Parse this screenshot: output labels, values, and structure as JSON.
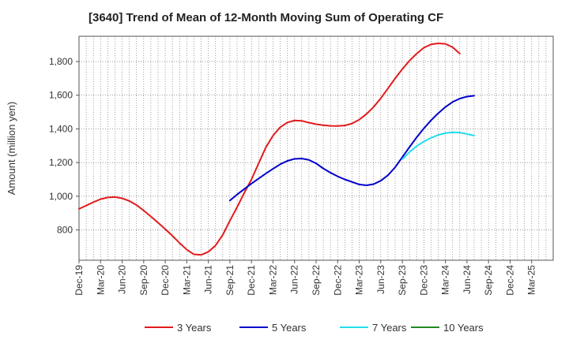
{
  "chart_data": {
    "type": "line",
    "title": "[3640]  Trend of Mean of 12-Month Moving Sum of Operating CF",
    "xlabel": "",
    "ylabel": "Amount (million yen)",
    "ylim": [
      620,
      1950
    ],
    "yticks": [
      800,
      1000,
      1200,
      1400,
      1600,
      1800
    ],
    "ytick_labels": [
      "800",
      "1,000",
      "1,200",
      "1,400",
      "1,600",
      "1,800"
    ],
    "x_tick_labels": [
      "Dec-19",
      "Mar-20",
      "Jun-20",
      "Sep-20",
      "Dec-20",
      "Mar-21",
      "Jun-21",
      "Sep-21",
      "Dec-21",
      "Mar-22",
      "Jun-22",
      "Sep-22",
      "Dec-22",
      "Mar-23",
      "Jun-23",
      "Sep-23",
      "Dec-23",
      "Mar-24",
      "Jun-24",
      "Sep-24",
      "Dec-24",
      "Mar-25"
    ],
    "grid": true,
    "legend_position": "bottom",
    "series": [
      {
        "name": "3 Years",
        "color": "#e31a1c",
        "start_month_index": 0,
        "values": [
          925,
          945,
          965,
          983,
          993,
          995,
          988,
          972,
          948,
          915,
          880,
          843,
          805,
          765,
          722,
          683,
          655,
          652,
          670,
          708,
          770,
          855,
          935,
          1020,
          1100,
          1195,
          1290,
          1360,
          1410,
          1438,
          1450,
          1448,
          1437,
          1428,
          1422,
          1418,
          1417,
          1420,
          1432,
          1455,
          1488,
          1530,
          1582,
          1640,
          1700,
          1755,
          1805,
          1847,
          1882,
          1902,
          1908,
          1905,
          1885,
          1847
        ]
      },
      {
        "name": "5 Years",
        "color": "#0000cc",
        "start_month_index": 21,
        "values": [
          975,
          1010,
          1043,
          1075,
          1105,
          1135,
          1163,
          1190,
          1210,
          1222,
          1224,
          1216,
          1195,
          1165,
          1140,
          1118,
          1100,
          1085,
          1070,
          1065,
          1072,
          1092,
          1125,
          1172,
          1232,
          1292,
          1350,
          1403,
          1451,
          1493,
          1530,
          1560,
          1580,
          1592,
          1597
        ]
      },
      {
        "name": "7 Years",
        "color": "#22ddee",
        "start_month_index": 45,
        "values": [
          1220,
          1262,
          1298,
          1325,
          1347,
          1364,
          1375,
          1380,
          1378,
          1370,
          1360
        ]
      },
      {
        "name": "10 Years",
        "color": "#228822",
        "start_month_index": 0,
        "values": []
      }
    ]
  }
}
